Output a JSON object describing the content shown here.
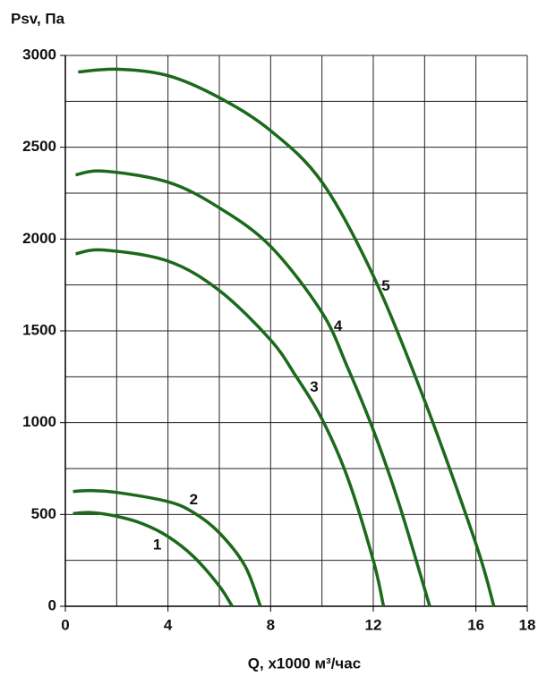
{
  "chart_data": {
    "type": "line",
    "ylabel": "Psv, Па",
    "xlabel": "Q, x1000 м³/час",
    "xlim": [
      0,
      18
    ],
    "xticks": [
      0,
      4,
      8,
      12,
      16,
      18
    ],
    "ylim": [
      0,
      3000
    ],
    "yticks": [
      0,
      500,
      1000,
      1500,
      2000,
      2500,
      3000
    ],
    "xgrid": [
      2,
      4,
      6,
      8,
      10,
      12,
      14,
      16,
      18
    ],
    "ygrid": [
      250,
      500,
      750,
      1000,
      1250,
      1500,
      1750,
      2000,
      2250,
      2500,
      2750,
      3000
    ],
    "grid": true,
    "series": [
      {
        "name": "1",
        "color": "#1b6a1b",
        "x": [
          0.3,
          1,
          2,
          3,
          4,
          5,
          6,
          6.5
        ],
        "values": [
          505,
          510,
          490,
          450,
          380,
          270,
          110,
          0
        ]
      },
      {
        "name": "2",
        "color": "#1b6a1b",
        "x": [
          0.3,
          1,
          2,
          4,
          5,
          6,
          7,
          7.6
        ],
        "values": [
          625,
          630,
          620,
          570,
          510,
          400,
          220,
          0
        ]
      },
      {
        "name": "3",
        "color": "#1b6a1b",
        "x": [
          0.4,
          1.5,
          4,
          6,
          8,
          9,
          10,
          11,
          12,
          12.4
        ],
        "values": [
          1920,
          1940,
          1880,
          1720,
          1450,
          1250,
          1020,
          700,
          250,
          0
        ]
      },
      {
        "name": "4",
        "color": "#1b6a1b",
        "x": [
          0.4,
          1.5,
          4,
          6,
          8,
          10,
          11,
          12,
          13,
          14.2
        ],
        "values": [
          2350,
          2370,
          2310,
          2170,
          1960,
          1600,
          1300,
          960,
          560,
          0
        ]
      },
      {
        "name": "5",
        "color": "#1b6a1b",
        "x": [
          0.5,
          2,
          4,
          6,
          8,
          10,
          12,
          14,
          16,
          16.7
        ],
        "values": [
          2910,
          2925,
          2890,
          2770,
          2590,
          2310,
          1800,
          1120,
          340,
          0
        ]
      }
    ]
  }
}
